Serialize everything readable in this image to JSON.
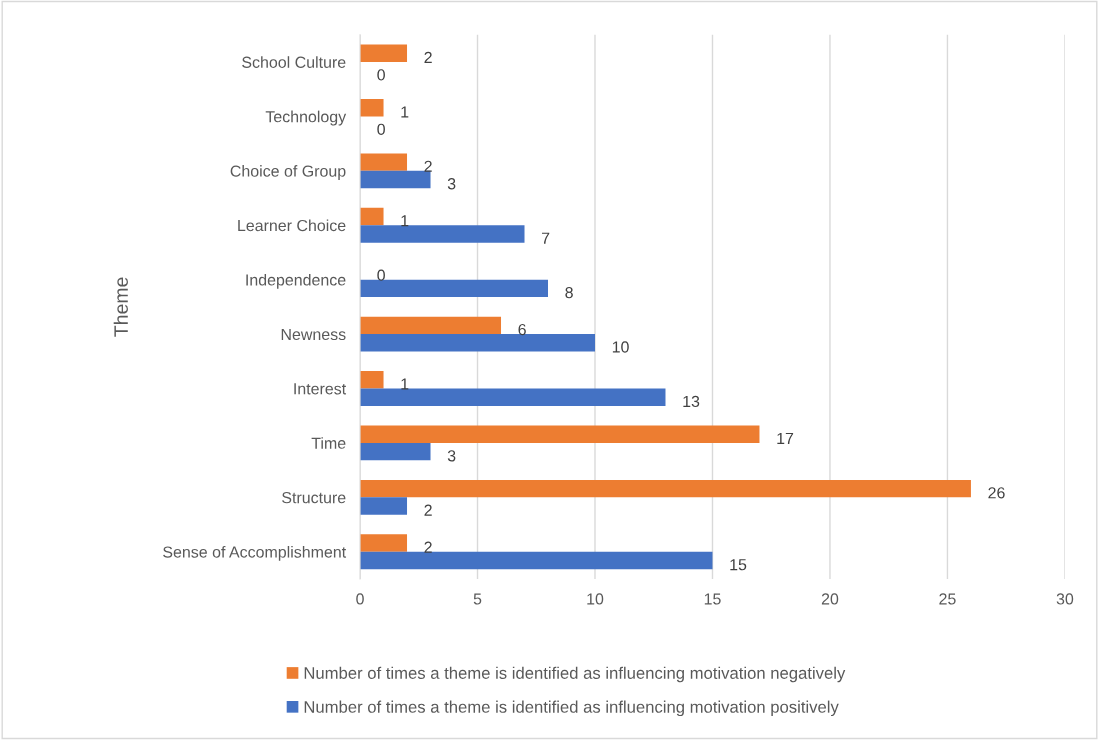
{
  "chart_data": {
    "type": "bar",
    "orientation": "horizontal",
    "ylabel": "Theme",
    "categories": [
      "School Culture",
      "Technology",
      "Choice of Group",
      "Learner Choice",
      "Independence",
      "Newness",
      "Interest",
      "Time",
      "Structure",
      "Sense of Accomplishment"
    ],
    "series": [
      {
        "name": "Number of times a theme is identified as influencing motivation negatively",
        "color": "#ed7d31",
        "values": [
          2,
          1,
          2,
          1,
          0,
          6,
          1,
          17,
          26,
          2
        ]
      },
      {
        "name": "Number of times a theme is identified as influencing motivation positively",
        "color": "#4472c4",
        "values": [
          0,
          0,
          3,
          7,
          8,
          10,
          13,
          3,
          2,
          15
        ]
      }
    ],
    "xlim": [
      0,
      30
    ],
    "xticks": [
      0,
      5,
      10,
      15,
      20,
      25,
      30
    ],
    "grid": "x",
    "legend": "bottom",
    "data_labels": true
  }
}
